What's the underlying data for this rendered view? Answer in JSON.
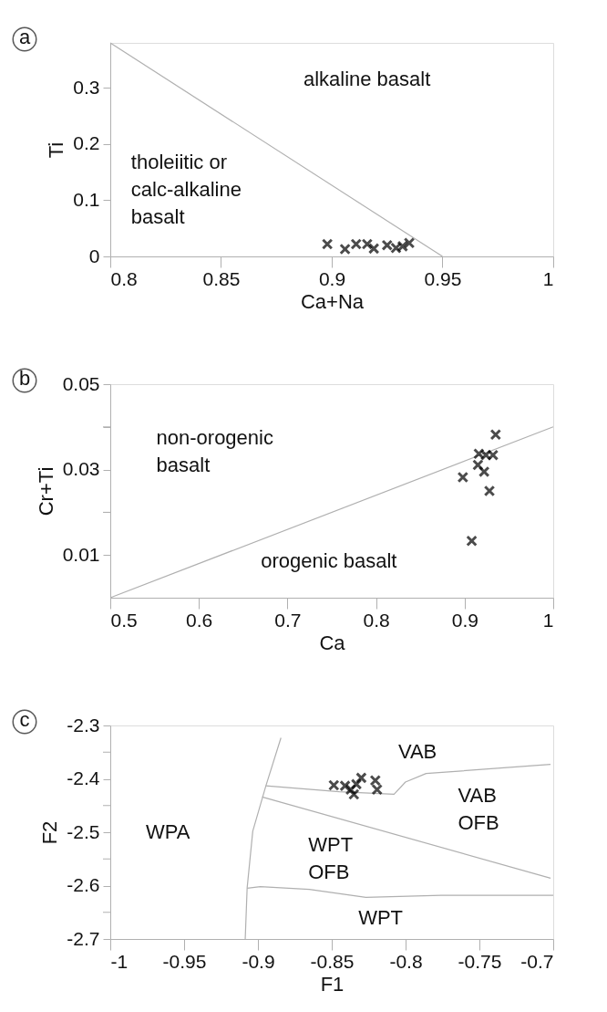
{
  "chart_data": [
    {
      "type": "scatter",
      "xlabel": "Ca+Na",
      "ylabel": "Ti",
      "xlim": [
        0.8,
        1
      ],
      "ylim": [
        0,
        0.38
      ],
      "xticks": [
        0.8,
        0.85,
        0.9,
        0.95,
        1
      ],
      "yticks": [
        0,
        0.1,
        0.2,
        0.3
      ],
      "grid": false,
      "marker": "cross",
      "series": [
        {
          "type": "line",
          "color": "#b0b0b0",
          "marker": "none",
          "x": [
            0.8,
            0.95
          ],
          "values": [
            0.38,
            0
          ]
        },
        {
          "color": "#000000",
          "x": [
            0.898,
            0.906,
            0.911,
            0.916,
            0.919,
            0.925,
            0.929,
            0.932,
            0.935
          ],
          "values": [
            0.022,
            0.013,
            0.022,
            0.022,
            0.014,
            0.02,
            0.015,
            0.018,
            0.024
          ]
        }
      ],
      "annotations": [
        "a",
        "alkaline basalt",
        "tholeiitic or\ncalc-alkaline\nbasalt"
      ]
    },
    {
      "type": "scatter",
      "xlabel": "Ca",
      "ylabel": "Cr+Ti",
      "xlim": [
        0.5,
        1
      ],
      "ylim": [
        0,
        0.05
      ],
      "xticks": [
        0.5,
        0.6,
        0.7,
        0.8,
        0.9,
        1
      ],
      "yticks": [
        0.01,
        {
          "value": 0.02,
          "label": null
        },
        0.03,
        {
          "value": 0.04,
          "label": null
        },
        0.05
      ],
      "grid": false,
      "marker": "cross",
      "series": [
        {
          "type": "line",
          "color": "#b0b0b0",
          "marker": "none",
          "x": [
            0.5,
            1
          ],
          "values": [
            0,
            0.04
          ]
        },
        {
          "color": "#000000",
          "x": [
            0.935,
            0.916,
            0.924,
            0.932,
            0.915,
            0.922,
            0.898,
            0.928,
            0.908
          ],
          "values": [
            0.0382,
            0.0337,
            0.0334,
            0.0334,
            0.0311,
            0.0295,
            0.0282,
            0.025,
            0.0133
          ]
        }
      ],
      "annotations": [
        "b",
        "non-orogenic\nbasalt",
        "orogenic basalt"
      ]
    },
    {
      "type": "scatter",
      "xlabel": "F1",
      "ylabel": "F2",
      "xlim": [
        -1,
        -0.7
      ],
      "ylim": [
        -2.7,
        -2.3
      ],
      "xticks": [
        -1,
        -0.95,
        -0.9,
        -0.85,
        -0.8,
        -0.75,
        -0.7
      ],
      "yticks": [
        -2.7,
        {
          "value": -2.65,
          "label": null
        },
        -2.6,
        {
          "value": -2.55,
          "label": null
        },
        -2.5,
        {
          "value": -2.45,
          "label": null
        },
        -2.4,
        {
          "value": -2.35,
          "label": null
        },
        -2.3
      ],
      "grid": false,
      "marker": "cross",
      "series": [
        {
          "type": "line",
          "color": "#b0b0b0",
          "marker": "none",
          "x": [
            -0.8844,
            -0.8946,
            -0.9035,
            -0.9073,
            -0.9086
          ],
          "values": [
            -2.323,
            -2.413,
            -2.498,
            -2.604,
            -2.7
          ]
        },
        {
          "type": "line",
          "color": "#b0b0b0",
          "marker": "none",
          "x": [
            -0.8946,
            -0.8448,
            -0.8078,
            -0.8001,
            -0.7861,
            -0.7018
          ],
          "values": [
            -2.413,
            -2.424,
            -2.429,
            -2.406,
            -2.39,
            -2.373
          ]
        },
        {
          "type": "line",
          "color": "#b0b0b0",
          "marker": "none",
          "x": [
            -0.8971,
            -0.7018
          ],
          "values": [
            -2.434,
            -2.586
          ]
        },
        {
          "type": "line",
          "color": "#b0b0b0",
          "marker": "none",
          "x": [
            -0.9073,
            -0.8984,
            -0.8652,
            -0.8269,
            -0.7758,
            -0.7
          ],
          "values": [
            -2.605,
            -2.602,
            -2.607,
            -2.622,
            -2.618,
            -2.618
          ]
        },
        {
          "color": "#000000",
          "x": [
            -0.8486,
            -0.841,
            -0.8371,
            -0.835,
            -0.8333,
            -0.83,
            -0.8205,
            -0.8193
          ],
          "values": [
            -2.412,
            -2.413,
            -2.42,
            -2.429,
            -2.41,
            -2.398,
            -2.403,
            -2.42
          ]
        }
      ],
      "annotations": [
        "c",
        "VAB",
        "VAB\nOFB",
        "WPA",
        "WPT\nOFB",
        "WPT"
      ]
    }
  ]
}
